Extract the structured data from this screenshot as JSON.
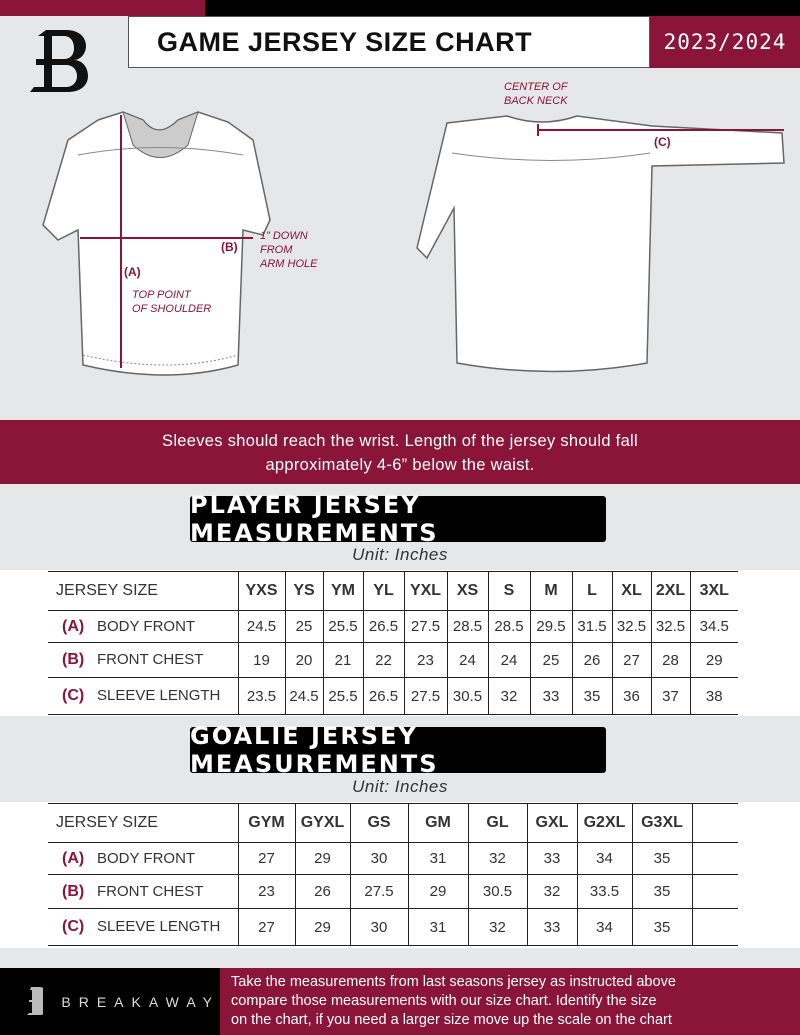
{
  "header": {
    "title": "GAME JERSEY SIZE CHART",
    "season": "2023/2024"
  },
  "diagram": {
    "center_back_neck": [
      "CENTER OF",
      "BACK NECK"
    ],
    "label_a": "(A)",
    "label_b": "(B)",
    "label_c": "(C)",
    "top_point": [
      "TOP POINT",
      "OF SHOULDER"
    ],
    "down_from": [
      "1” DOWN",
      "FROM",
      "ARM HOLE"
    ]
  },
  "guidance": [
    "Sleeves should reach the wrist. Length of the jersey should fall",
    "approximately 4-6” below the waist."
  ],
  "player": {
    "title": "PLAYER JERSEY MEASUREMENTS",
    "unit": "Unit: Inches",
    "size_label": "JERSEY SIZE",
    "sizes": [
      "YXS",
      "YS",
      "YM",
      "YL",
      "YXL",
      "XS",
      "S",
      "M",
      "L",
      "XL",
      "2XL",
      "3XL"
    ],
    "rows": [
      {
        "letter": "(A)",
        "name": "BODY FRONT",
        "values": [
          "24.5",
          "25",
          "25.5",
          "26.5",
          "27.5",
          "28.5",
          "28.5",
          "29.5",
          "31.5",
          "32.5",
          "32.5",
          "34.5"
        ]
      },
      {
        "letter": "(B)",
        "name": "FRONT CHEST",
        "values": [
          "19",
          "20",
          "21",
          "22",
          "23",
          "24",
          "24",
          "25",
          "26",
          "27",
          "28",
          "29"
        ]
      },
      {
        "letter": "(C)",
        "name": "SLEEVE LENGTH",
        "values": [
          "23.5",
          "24.5",
          "25.5",
          "26.5",
          "27.5",
          "30.5",
          "32",
          "33",
          "35",
          "36",
          "37",
          "38"
        ]
      }
    ]
  },
  "goalie": {
    "title": "GOALIE JERSEY MEASUREMENTS",
    "unit": "Unit: Inches",
    "size_label": "JERSEY SIZE",
    "sizes": [
      "GYM",
      "GYXL",
      "GS",
      "GM",
      "GL",
      "GXL",
      "G2XL",
      "G3XL",
      ""
    ],
    "rows": [
      {
        "letter": "(A)",
        "name": "BODY FRONT",
        "values": [
          "27",
          "29",
          "30",
          "31",
          "32",
          "33",
          "34",
          "35",
          ""
        ]
      },
      {
        "letter": "(B)",
        "name": "FRONT CHEST",
        "values": [
          "23",
          "26",
          "27.5",
          "29",
          "30.5",
          "32",
          "33.5",
          "35",
          ""
        ]
      },
      {
        "letter": "(C)",
        "name": "SLEEVE LENGTH",
        "values": [
          "27",
          "29",
          "30",
          "31",
          "32",
          "33",
          "34",
          "35",
          ""
        ]
      }
    ]
  },
  "footer": {
    "brand": "BREAKAWAY",
    "text": [
      "Take the measurements from last seasons jersey as instructed above",
      "compare those measurements  with our size chart. Identify the size",
      "on the chart, if you need a larger size move up the scale on the chart"
    ]
  },
  "colors": {
    "accent": "#8a1538",
    "dark": "#000000",
    "background": "#e6e7e8"
  }
}
